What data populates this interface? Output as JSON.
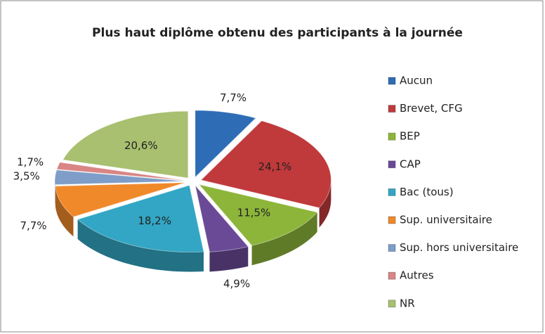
{
  "chart_data": {
    "type": "pie",
    "title": "Plus haut diplôme obtenu des participants à la journée",
    "categories": [
      "Aucun",
      "Brevet, CFG",
      "BEP",
      "CAP",
      "Bac (tous)",
      "Sup. universitaire",
      "Sup. hors universitaire",
      "Autres",
      "NR"
    ],
    "values": [
      7.7,
      24.1,
      11.5,
      4.9,
      18.2,
      7.7,
      3.5,
      1.7,
      20.6
    ],
    "value_labels": [
      "7,7%",
      "24,1%",
      "11,5%",
      "4,9%",
      "18,2%",
      "7,7%",
      "3,5%",
      "1,7%",
      "20,6%"
    ],
    "colors": [
      "#2e6db5",
      "#c0393b",
      "#8db53a",
      "#6a4a96",
      "#32a6c4",
      "#f0892a",
      "#7e9dc8",
      "#d88584",
      "#a8c06f"
    ],
    "legend": "right"
  }
}
